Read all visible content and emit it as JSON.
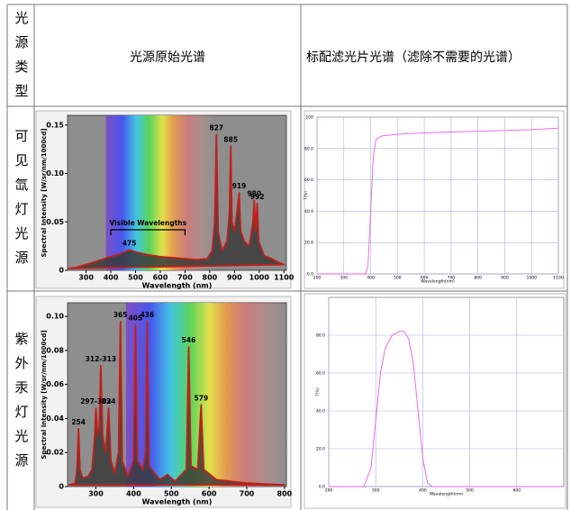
{
  "table": {
    "header": [
      "光源类型",
      "光源原始光谱",
      "标配滤光片光谱（滤除不需要的光谱）"
    ],
    "rows": [
      {
        "label": "可见氙灯光源"
      },
      {
        "label": "紫外汞灯光源"
      }
    ]
  },
  "chart_data": [
    {
      "type": "area",
      "ylabel": "Spectral Intensity [W/sr/nm/1000cd]",
      "xlabel": "Wavelength (nm)",
      "x": [
        230,
        260,
        300,
        350,
        400,
        450,
        475,
        500,
        550,
        600,
        650,
        700,
        750,
        790,
        810,
        820,
        827,
        834,
        850,
        870,
        880,
        885,
        890,
        900,
        910,
        919,
        925,
        940,
        960,
        975,
        980,
        985,
        992,
        998,
        1020,
        1050,
        1080,
        1100
      ],
      "values": [
        0.002,
        0.003,
        0.006,
        0.01,
        0.014,
        0.018,
        0.021,
        0.019,
        0.016,
        0.014,
        0.013,
        0.012,
        0.011,
        0.012,
        0.02,
        0.05,
        0.14,
        0.04,
        0.02,
        0.03,
        0.06,
        0.128,
        0.05,
        0.04,
        0.06,
        0.08,
        0.04,
        0.03,
        0.025,
        0.05,
        0.072,
        0.04,
        0.069,
        0.03,
        0.015,
        0.012,
        0.008,
        0.006
      ],
      "color": "#c0201a",
      "fill": "#3a3a3a",
      "grid": false,
      "xlim": [
        225,
        1110
      ],
      "ylim": [
        0,
        0.16
      ],
      "xticks": [
        300,
        400,
        500,
        600,
        700,
        800,
        900,
        1000,
        1100
      ],
      "yticks": [
        0,
        0.05,
        {
          "value": 0.1,
          "label": "0.10"
        },
        0.15
      ],
      "bracket_label": "Visible Wavelengths",
      "annotations": [
        {
          "text": "475",
          "x": 475,
          "y": 0.021
        },
        {
          "text": "827",
          "x": 827,
          "y": 0.14
        },
        {
          "text": "885",
          "x": 885,
          "y": 0.128
        },
        {
          "text": "919",
          "x": 919,
          "y": 0.08
        },
        {
          "text": "980",
          "x": 980,
          "y": 0.072
        },
        {
          "text": "992",
          "x": 992,
          "y": 0.069
        }
      ]
    },
    {
      "type": "line",
      "ylabel": "T(%)",
      "xlabel": "Wavelength(nm)",
      "x": [
        200,
        380,
        390,
        400,
        410,
        420,
        440,
        500,
        600,
        700,
        800,
        900,
        1000,
        1100
      ],
      "values": [
        0,
        0,
        5,
        40,
        75,
        86,
        88,
        89,
        90,
        90.5,
        91,
        91.5,
        92,
        93
      ],
      "color": "#e85ce8",
      "grid": true,
      "xlim": [
        200,
        1100
      ],
      "ylim": [
        0,
        100
      ],
      "xticks": [
        200,
        300,
        400,
        500,
        600,
        700,
        800,
        900,
        1000,
        1100
      ],
      "yticks": [
        {
          "value": 0,
          "label": "0.0"
        },
        {
          "value": 20,
          "label": "20.0"
        },
        {
          "value": 40,
          "label": "40.0"
        },
        {
          "value": 60,
          "label": "60.0"
        },
        {
          "value": 80,
          "label": "80.0"
        },
        100
      ]
    },
    {
      "type": "area",
      "ylabel": "Spectral Intensity [W/sr/nm/1000cd]",
      "xlabel": "Wavelength (nm)",
      "x": [
        230,
        245,
        250,
        254,
        258,
        265,
        280,
        290,
        297,
        300,
        305,
        309,
        313,
        318,
        326,
        334,
        340,
        350,
        360,
        365,
        370,
        385,
        400,
        405,
        410,
        425,
        432,
        436,
        441,
        470,
        490,
        510,
        540,
        546,
        552,
        570,
        579,
        586,
        620,
        700,
        800
      ],
      "values": [
        0.001,
        0.002,
        0.01,
        0.034,
        0.01,
        0.005,
        0.006,
        0.01,
        0.03,
        0.046,
        0.03,
        0.035,
        0.071,
        0.03,
        0.02,
        0.046,
        0.015,
        0.008,
        0.02,
        0.097,
        0.015,
        0.006,
        0.015,
        0.095,
        0.015,
        0.01,
        0.02,
        0.097,
        0.012,
        0.004,
        0.007,
        0.003,
        0.01,
        0.082,
        0.012,
        0.01,
        0.048,
        0.01,
        0.004,
        0.002,
        0.001
      ],
      "color": "#c0201a",
      "fill": "#3a3a3a",
      "grid": false,
      "xlim": [
        225,
        805
      ],
      "ylim": [
        0,
        0.108
      ],
      "xticks": [
        300,
        400,
        500,
        600,
        700,
        800
      ],
      "yticks": [
        0,
        0.02,
        0.04,
        0.06,
        0.08,
        {
          "value": 0.1,
          "label": "0.10"
        }
      ],
      "annotations": [
        {
          "text": "254",
          "x": 254,
          "y": 0.034
        },
        {
          "text": "297-302",
          "x": 300,
          "y": 0.046
        },
        {
          "text": "312-313",
          "x": 313,
          "y": 0.071
        },
        {
          "text": "334",
          "x": 334,
          "y": 0.046
        },
        {
          "text": "365",
          "x": 365,
          "y": 0.097
        },
        {
          "text": "405",
          "x": 405,
          "y": 0.095
        },
        {
          "text": "436",
          "x": 436,
          "y": 0.097
        },
        {
          "text": "546",
          "x": 546,
          "y": 0.082
        },
        {
          "text": "579",
          "x": 579,
          "y": 0.048
        }
      ]
    },
    {
      "type": "line",
      "ylabel": "T(%)",
      "xlabel": "Wavelength(nm)",
      "x": [
        200,
        275,
        290,
        300,
        310,
        320,
        335,
        350,
        360,
        370,
        380,
        390,
        400,
        410,
        420,
        700
      ],
      "values": [
        0,
        0,
        10,
        35,
        60,
        73,
        80,
        82,
        82,
        78,
        65,
        40,
        15,
        2,
        0,
        0
      ],
      "color": "#e85ce8",
      "grid": true,
      "xlim": [
        200,
        700
      ],
      "ylim": [
        0,
        100
      ],
      "xticks": [
        200,
        300,
        400,
        500,
        600
      ],
      "yticks": [
        {
          "value": 0,
          "label": "0.0"
        },
        {
          "value": 20,
          "label": "20.0"
        },
        {
          "value": 40,
          "label": "40.0"
        },
        {
          "value": 60,
          "label": "60.0"
        },
        {
          "value": 80,
          "label": "80.0"
        }
      ]
    }
  ]
}
